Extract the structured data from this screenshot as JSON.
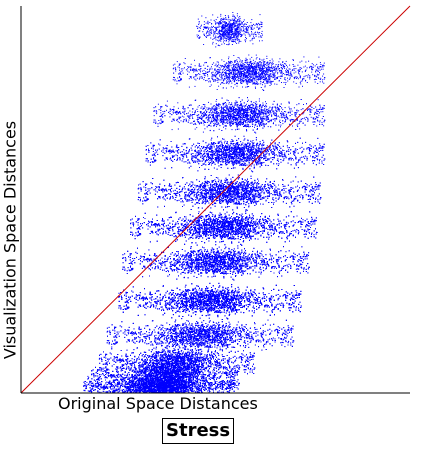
{
  "chart_data": {
    "type": "scatter",
    "title": "Stress",
    "xlabel": "Original Space Distances",
    "ylabel": "Visualization Space Distances",
    "xlim": [
      0,
      1
    ],
    "ylim": [
      0,
      1
    ],
    "grid": false,
    "point_color": "#0000ff",
    "reference_line": {
      "from": [
        0,
        0
      ],
      "to": [
        1,
        1
      ],
      "color": "#cc0000"
    },
    "density": {
      "x_range": [
        0.15,
        0.8
      ],
      "y_range": [
        0,
        1
      ],
      "bands": [
        {
          "y": 0.01,
          "x_from": 0.16,
          "x_to": 0.55,
          "weight": 3.0
        },
        {
          "y": 0.04,
          "x_from": 0.18,
          "x_to": 0.56,
          "weight": 2.0
        },
        {
          "y": 0.08,
          "x_from": 0.2,
          "x_to": 0.6,
          "weight": 1.6
        },
        {
          "y": 0.15,
          "x_from": 0.22,
          "x_to": 0.7,
          "weight": 1.4
        },
        {
          "y": 0.24,
          "x_from": 0.25,
          "x_to": 0.72,
          "weight": 2.2
        },
        {
          "y": 0.34,
          "x_from": 0.26,
          "x_to": 0.74,
          "weight": 1.6
        },
        {
          "y": 0.43,
          "x_from": 0.28,
          "x_to": 0.76,
          "weight": 1.8
        },
        {
          "y": 0.52,
          "x_from": 0.3,
          "x_to": 0.77,
          "weight": 1.5
        },
        {
          "y": 0.62,
          "x_from": 0.32,
          "x_to": 0.78,
          "weight": 1.2
        },
        {
          "y": 0.72,
          "x_from": 0.34,
          "x_to": 0.78,
          "weight": 0.9
        },
        {
          "y": 0.83,
          "x_from": 0.39,
          "x_to": 0.78,
          "weight": 0.6
        },
        {
          "y": 0.94,
          "x_from": 0.45,
          "x_to": 0.62,
          "weight": 0.3
        }
      ]
    }
  }
}
